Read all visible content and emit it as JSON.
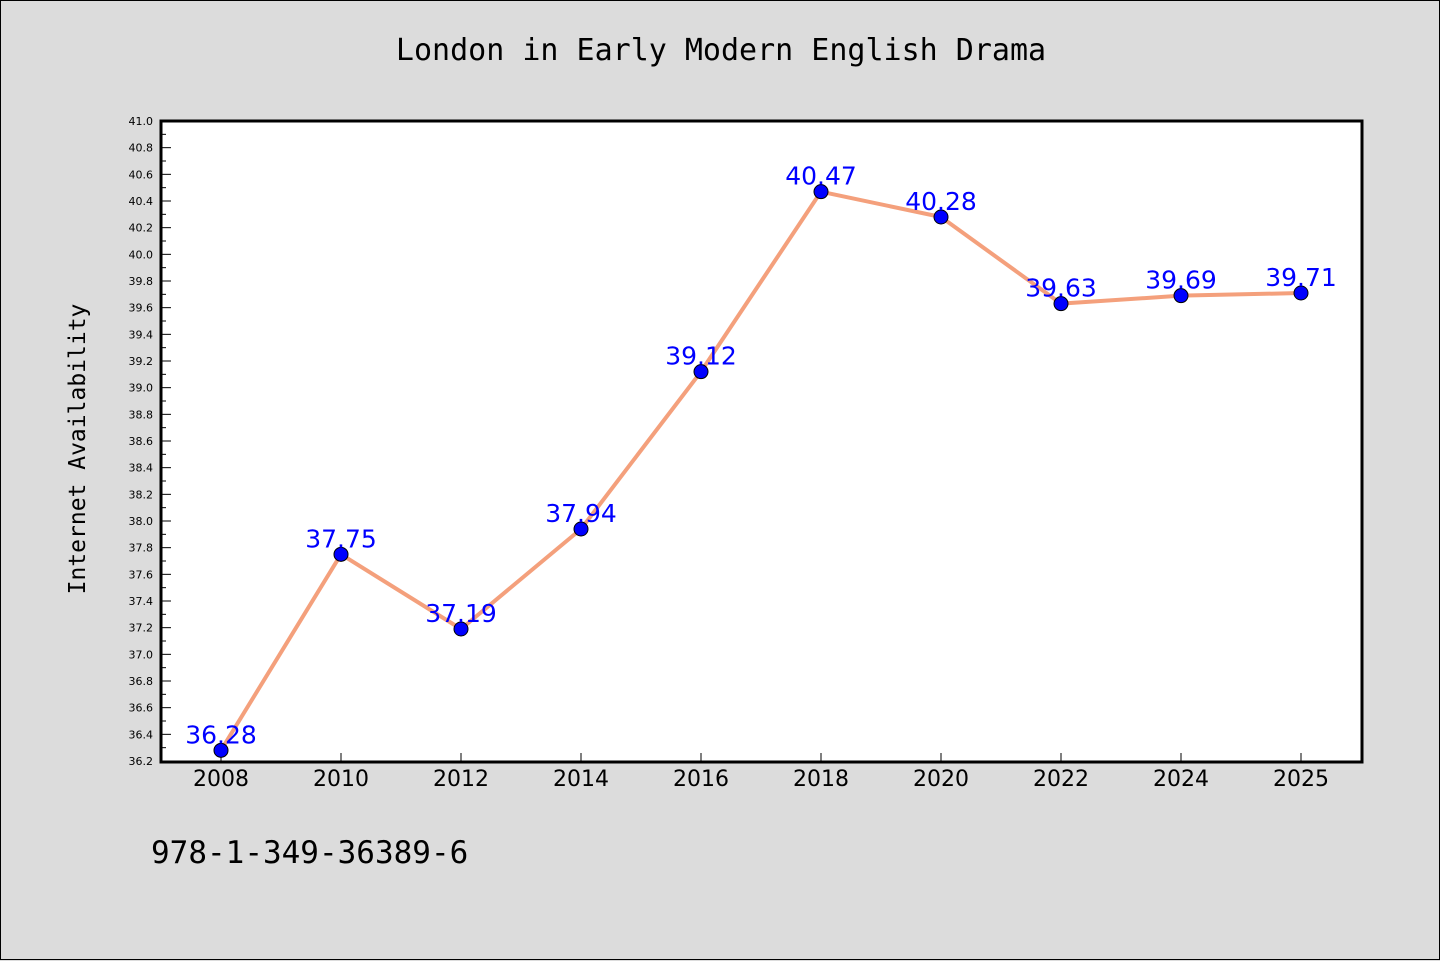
{
  "page": {
    "title": "London in Early Modern English Drama",
    "footer_text": "978-1-349-36389-6"
  },
  "chart_data": {
    "type": "line",
    "title": "London in Early Modern English Drama",
    "xlabel": "",
    "ylabel": "Internet Availability",
    "categories": [
      "2008",
      "2010",
      "2012",
      "2014",
      "2016",
      "2018",
      "2020",
      "2022",
      "2024",
      "2025"
    ],
    "series": [
      {
        "values": [
          36.28,
          37.75,
          37.19,
          37.94,
          39.12,
          40.47,
          40.28,
          39.63,
          39.69,
          39.71
        ]
      }
    ],
    "data_labels": [
      "36.28",
      "37.75",
      "37.19",
      "37.94",
      "39.12",
      "40.47",
      "40.28",
      "39.63",
      "39.69",
      "39.71"
    ],
    "ylim": [
      36.2,
      41.0
    ],
    "yticks": [
      "36.2",
      "36.4",
      "36.6",
      "36.8",
      "37.0",
      "37.2",
      "37.4",
      "37.6",
      "37.8",
      "38.0",
      "38.2",
      "38.4",
      "38.6",
      "38.8",
      "39.0",
      "39.2",
      "39.4",
      "39.6",
      "39.8",
      "40.0",
      "40.2",
      "40.4",
      "40.6",
      "40.8",
      "41.0"
    ],
    "grid": false,
    "legend": "none",
    "colors": {
      "line": "#f4a07c",
      "marker": "#0000ff",
      "label": "#0000ff",
      "plot_background": "#ffffff",
      "page_background": "#dcdcdc"
    }
  }
}
